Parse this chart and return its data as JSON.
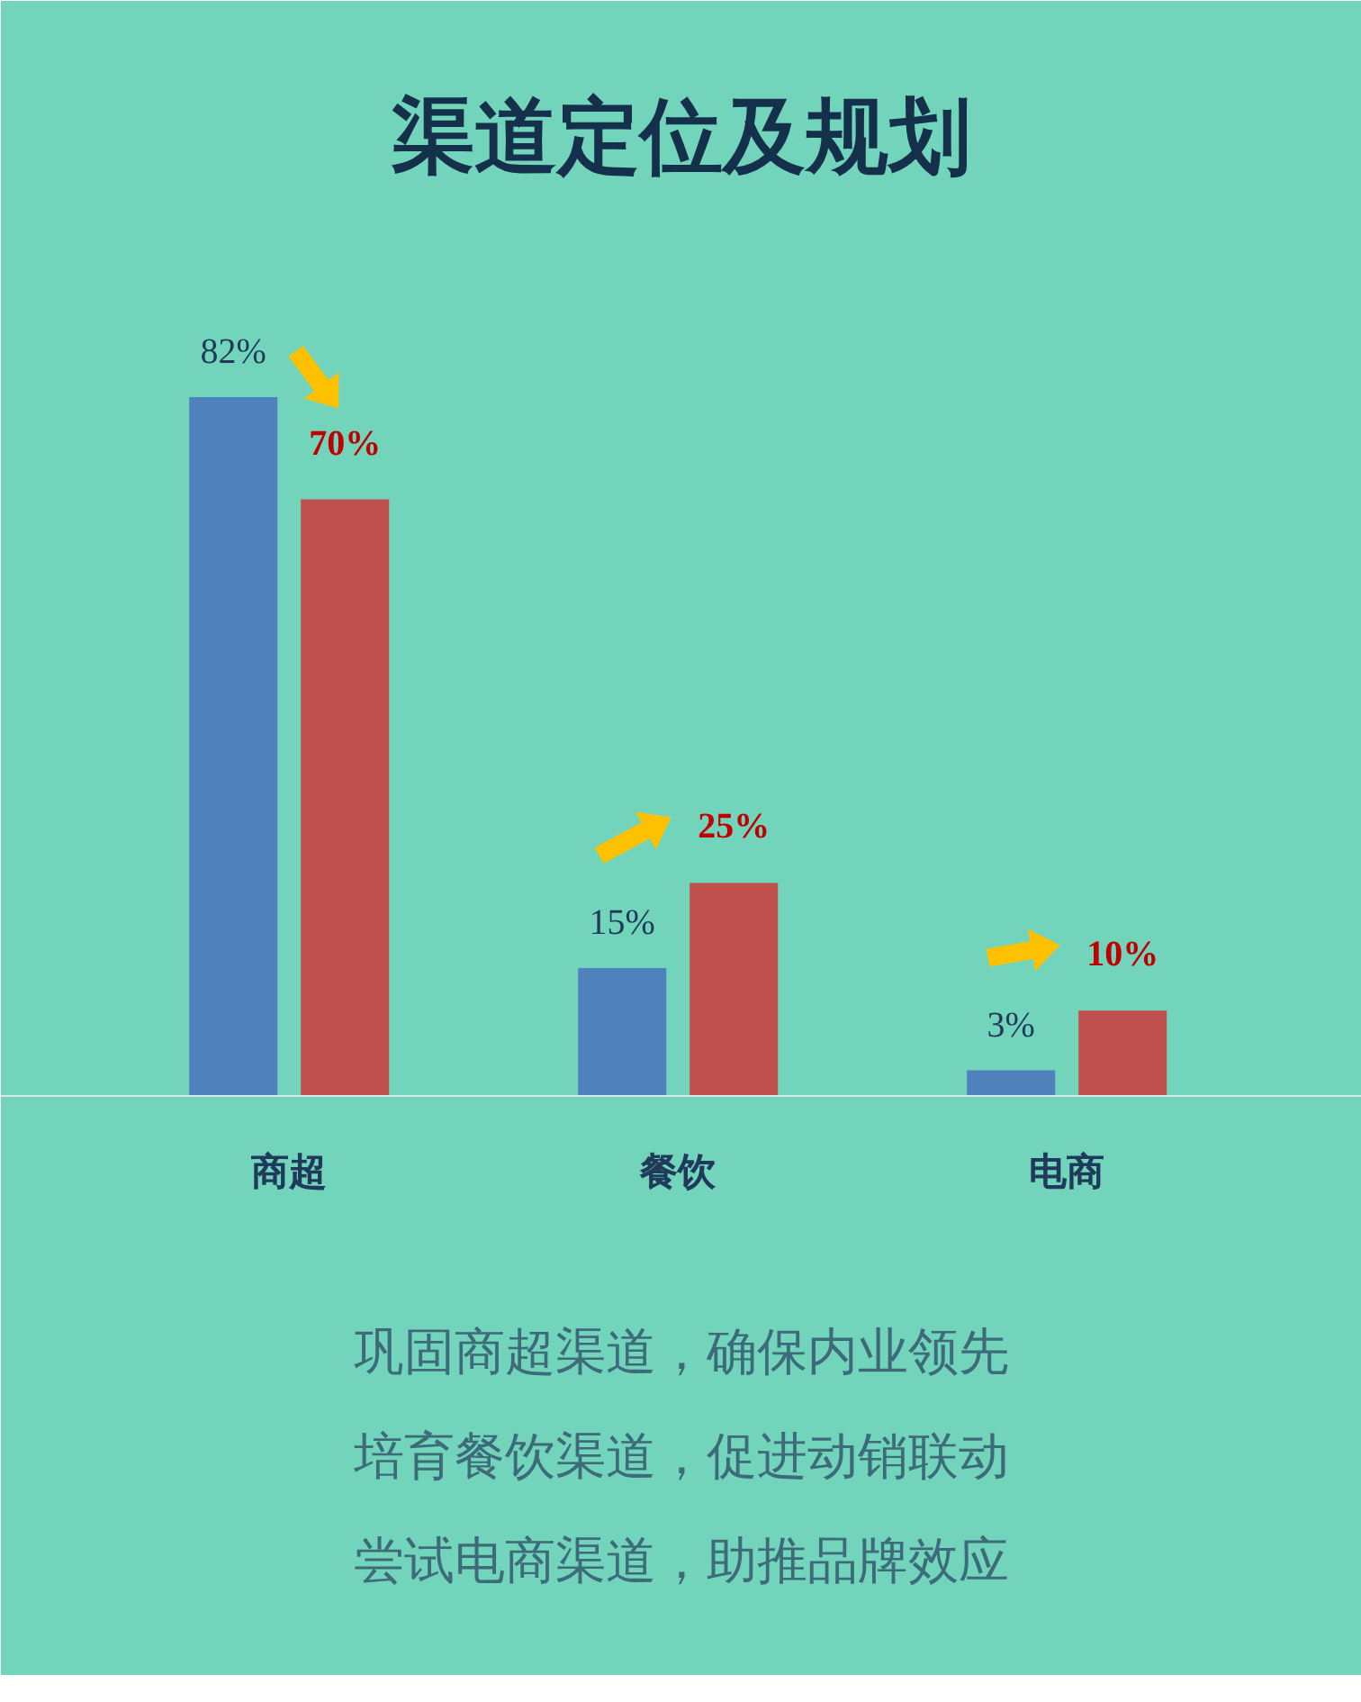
{
  "chart_data": {
    "type": "bar",
    "title": "渠道定位及规划",
    "categories": [
      "商超",
      "餐饮",
      "电商"
    ],
    "series": [
      {
        "color": "#4f81bd",
        "values": [
          82,
          15,
          3
        ],
        "value_labels": [
          "82%",
          "15%",
          "3%"
        ]
      },
      {
        "color": "#c0504d",
        "values": [
          70,
          25,
          10
        ],
        "value_labels": [
          "70%",
          "25%",
          "10%"
        ]
      }
    ],
    "grid": false,
    "annotations": [
      "巩固商超渠道，确保内业领先",
      "培育餐饮渠道，促进动销联动",
      "尝试电商渠道，助推品牌效应"
    ]
  }
}
